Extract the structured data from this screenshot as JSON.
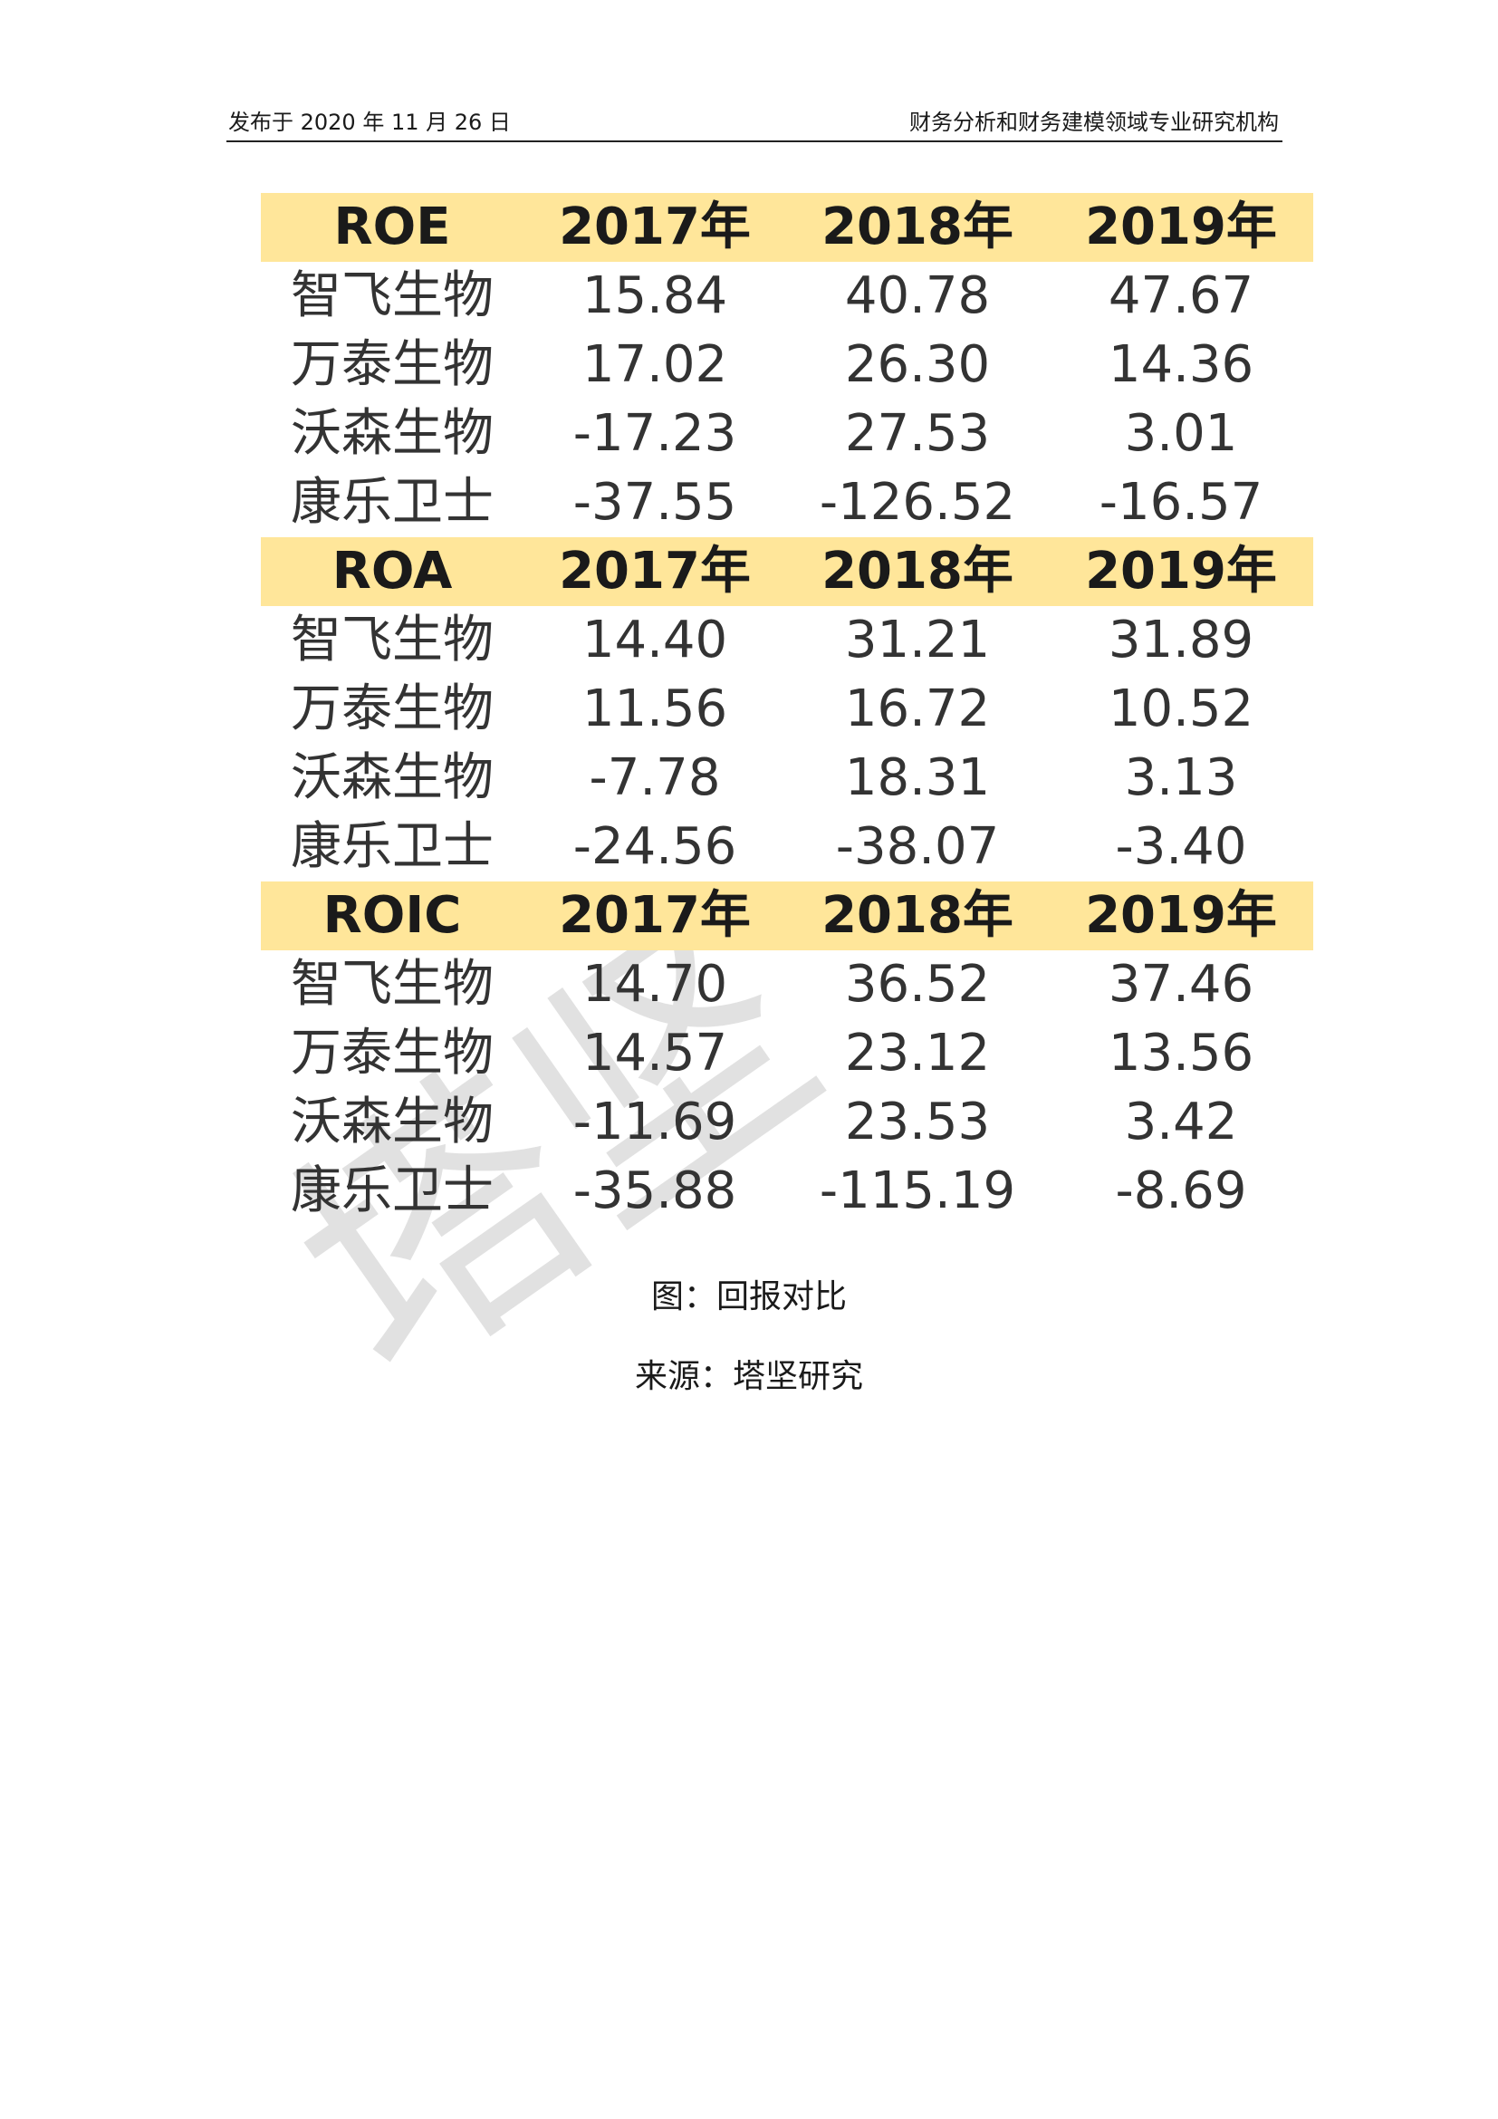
{
  "header": {
    "date_text": "发布于 2020 年 11 月 26 日",
    "org_text": "财务分析和财务建模领域专业研究机构"
  },
  "watermark": "塔坚",
  "table": {
    "sections": [
      {
        "metric": "ROE",
        "years": [
          "2017年",
          "2018年",
          "2019年"
        ],
        "rows": [
          {
            "company": "智飞生物",
            "values": [
              "15.84",
              "40.78",
              "47.67"
            ]
          },
          {
            "company": "万泰生物",
            "values": [
              "17.02",
              "26.30",
              "14.36"
            ]
          },
          {
            "company": "沃森生物",
            "values": [
              "-17.23",
              "27.53",
              "3.01"
            ]
          },
          {
            "company": "康乐卫士",
            "values": [
              "-37.55",
              "-126.52",
              "-16.57"
            ]
          }
        ]
      },
      {
        "metric": "ROA",
        "years": [
          "2017年",
          "2018年",
          "2019年"
        ],
        "rows": [
          {
            "company": "智飞生物",
            "values": [
              "14.40",
              "31.21",
              "31.89"
            ]
          },
          {
            "company": "万泰生物",
            "values": [
              "11.56",
              "16.72",
              "10.52"
            ]
          },
          {
            "company": "沃森生物",
            "values": [
              "-7.78",
              "18.31",
              "3.13"
            ]
          },
          {
            "company": "康乐卫士",
            "values": [
              "-24.56",
              "-38.07",
              "-3.40"
            ]
          }
        ]
      },
      {
        "metric": "ROIC",
        "years": [
          "2017年",
          "2018年",
          "2019年"
        ],
        "rows": [
          {
            "company": "智飞生物",
            "values": [
              "14.70",
              "36.52",
              "37.46"
            ]
          },
          {
            "company": "万泰生物",
            "values": [
              "14.57",
              "23.12",
              "13.56"
            ]
          },
          {
            "company": "沃森生物",
            "values": [
              "-11.69",
              "23.53",
              "3.42"
            ]
          },
          {
            "company": "康乐卫士",
            "values": [
              "-35.88",
              "-115.19",
              "-8.69"
            ]
          }
        ]
      }
    ],
    "header_color": "#ffe69a"
  },
  "captions": {
    "figure": "图：回报对比",
    "source": "来源：塔坚研究"
  }
}
